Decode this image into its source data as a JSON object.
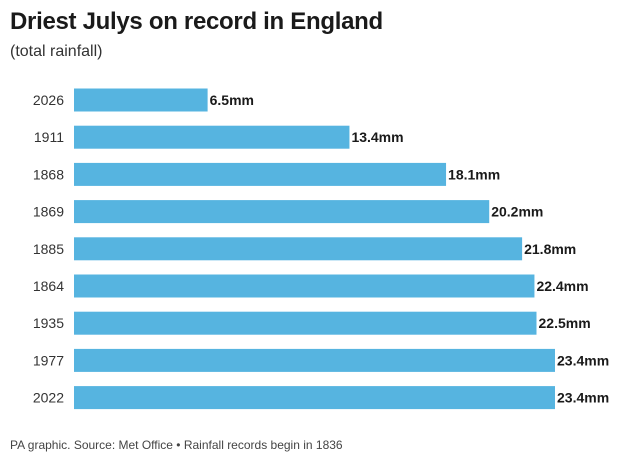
{
  "title": "Driest Julys on record in England",
  "subtitle": "(total rainfall)",
  "footer": "PA graphic. Source: Met Office • Rainfall records begin in 1836",
  "colors": {
    "bar": "#56b4e0",
    "text": "#1a1a1a"
  },
  "chart_data": {
    "type": "bar",
    "orientation": "horizontal",
    "title": "Driest Julys on record in England",
    "subtitle": "(total rainfall)",
    "categories": [
      "2026",
      "1911",
      "1868",
      "1869",
      "1885",
      "1864",
      "1935",
      "1977",
      "2022"
    ],
    "values": [
      6.5,
      13.4,
      18.1,
      20.2,
      21.8,
      22.4,
      22.5,
      23.4,
      23.4
    ],
    "value_labels": [
      "6.5mm",
      "13.4mm",
      "18.1mm",
      "20.2mm",
      "21.8mm",
      "22.4mm",
      "22.5mm",
      "23.4mm",
      "23.4mm"
    ],
    "unit": "mm",
    "xlim": [
      0,
      23.4
    ],
    "grid": false,
    "legend": "none"
  }
}
